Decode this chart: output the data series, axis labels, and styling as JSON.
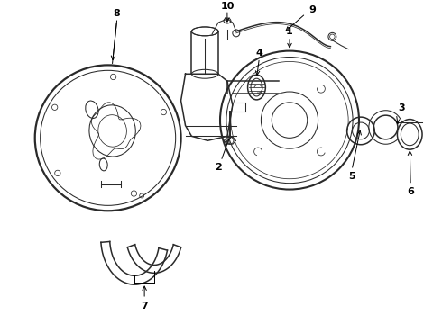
{
  "background_color": "#ffffff",
  "line_color": "#2a2a2a",
  "lw": 1.1,
  "figsize": [
    4.9,
    3.6
  ],
  "dpi": 100,
  "xlim": [
    0,
    4.9
  ],
  "ylim": [
    0,
    3.6
  ]
}
